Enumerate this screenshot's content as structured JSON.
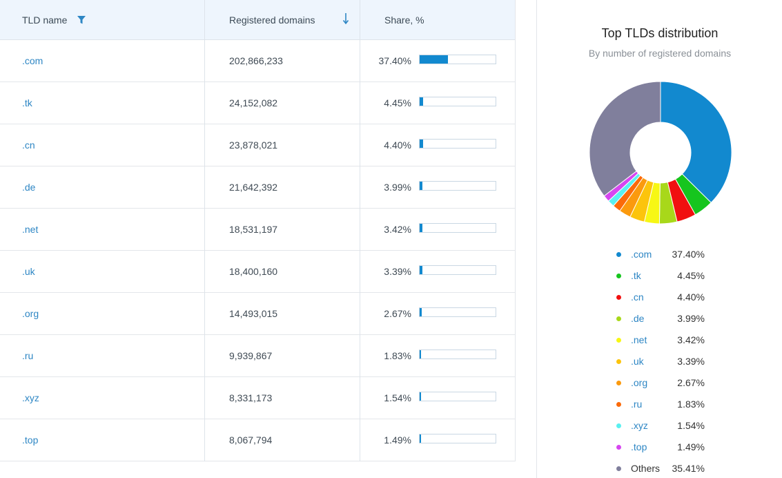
{
  "table": {
    "headers": {
      "name": "TLD name",
      "registered": "Registered domains",
      "share": "Share, %"
    },
    "rows": [
      {
        "tld": ".com",
        "registered": "202,866,233",
        "share_label": "37.40%",
        "share": 37.4
      },
      {
        "tld": ".tk",
        "registered": "24,152,082",
        "share_label": "4.45%",
        "share": 4.45
      },
      {
        "tld": ".cn",
        "registered": "23,878,021",
        "share_label": "4.40%",
        "share": 4.4
      },
      {
        "tld": ".de",
        "registered": "21,642,392",
        "share_label": "3.99%",
        "share": 3.99
      },
      {
        "tld": ".net",
        "registered": "18,531,197",
        "share_label": "3.42%",
        "share": 3.42
      },
      {
        "tld": ".uk",
        "registered": "18,400,160",
        "share_label": "3.39%",
        "share": 3.39
      },
      {
        "tld": ".org",
        "registered": "14,493,015",
        "share_label": "2.67%",
        "share": 2.67
      },
      {
        "tld": ".ru",
        "registered": "9,939,867",
        "share_label": "1.83%",
        "share": 1.83
      },
      {
        "tld": ".xyz",
        "registered": "8,331,173",
        "share_label": "1.54%",
        "share": 1.54
      },
      {
        "tld": ".top",
        "registered": "8,067,794",
        "share_label": "1.49%",
        "share": 1.49
      }
    ]
  },
  "chart": {
    "title": "Top TLDs distribution",
    "subtitle": "By number of registered domains"
  },
  "chart_data": {
    "type": "pie",
    "title": "Top TLDs distribution",
    "subtitle": "By number of registered domains",
    "categories": [
      ".com",
      ".tk",
      ".cn",
      ".de",
      ".net",
      ".uk",
      ".org",
      ".ru",
      ".xyz",
      ".top",
      "Others"
    ],
    "values": [
      37.4,
      4.45,
      4.4,
      3.99,
      3.42,
      3.39,
      2.67,
      1.83,
      1.54,
      1.49,
      35.41
    ],
    "labels": [
      "37.40%",
      "4.45%",
      "4.40%",
      "3.99%",
      "3.42%",
      "3.39%",
      "2.67%",
      "1.83%",
      "1.54%",
      "1.49%",
      "35.41%"
    ],
    "colors": [
      "#1289cf",
      "#16c51e",
      "#f11010",
      "#a8d81a",
      "#f7f714",
      "#fcc40c",
      "#fb9a0e",
      "#fb6a0a",
      "#5af0f0",
      "#d646f0",
      "#807f9c"
    ],
    "legend_position": "bottom",
    "donut": true
  }
}
